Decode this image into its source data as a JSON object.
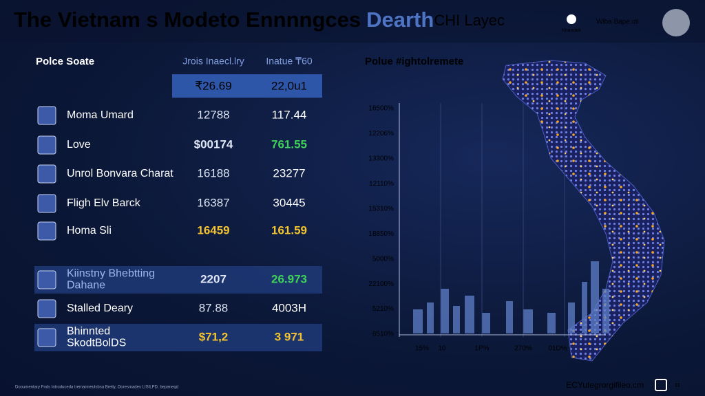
{
  "header": {
    "title": "The Vietnam s Modeto Ennnngces",
    "title_accent": "Dearth",
    "title_tail": "CHI Layec",
    "brand_mark": "Knandok",
    "brand": "Wiba Bape.cti"
  },
  "table": {
    "headers": [
      "Polce Soate",
      "Jrois Inaecl.lry",
      "Inatue ₸60"
    ],
    "summary": [
      "₹26.69",
      "22,0u1"
    ],
    "rows": [
      {
        "name": [
          "Moma Umard"
        ],
        "cells": [
          "12788",
          "117.44"
        ],
        "color": "#ffffff"
      },
      {
        "name": [
          "Love"
        ],
        "cells": [
          "$00174",
          "761.55"
        ],
        "color": "#3fd15a"
      },
      {
        "name": [
          "Unrol Bonvara Charat"
        ],
        "cells": [
          "16188",
          "23277"
        ],
        "color": "#ffffff"
      },
      {
        "name": [
          "Fligh Elv Barck"
        ],
        "cells": [
          "16387",
          "30445"
        ],
        "color": "#ffffff"
      },
      {
        "name": [
          "Homa Sli"
        ],
        "cells": [
          "16459",
          "161.59"
        ],
        "color": "#f4c430"
      },
      {
        "name": [
          "Kiinstny Bhebtting",
          "Dahane"
        ],
        "cells": [
          "2207",
          "26.973"
        ],
        "color": "#3fd15a"
      },
      {
        "name": [
          "Stalled Deary"
        ],
        "cells": [
          "87.88",
          "4003H"
        ],
        "color": "#ffffff"
      },
      {
        "name": [
          "Bhinnted",
          "SkodtBolDS"
        ],
        "cells": [
          "$71,2",
          "3 971"
        ],
        "color": "#f4c430"
      }
    ]
  },
  "map_panel": {
    "title": "Polue #ightolremete",
    "y_labels": [
      "16500%",
      "12206%",
      "13300%",
      "12110%",
      "15310%",
      "18850%",
      "5000%",
      "22100%",
      "5210%",
      "6510%"
    ],
    "x_labels": [
      "15%",
      "10",
      "1P%",
      "270%",
      "01D%"
    ]
  },
  "footer": {
    "note": "Dooumentary Fnds Introduceda tremarmeulsbsa Breily, Ooresmades LISILPD, bepaneqd",
    "site": "ECYutegrorgifileo.cm"
  }
}
